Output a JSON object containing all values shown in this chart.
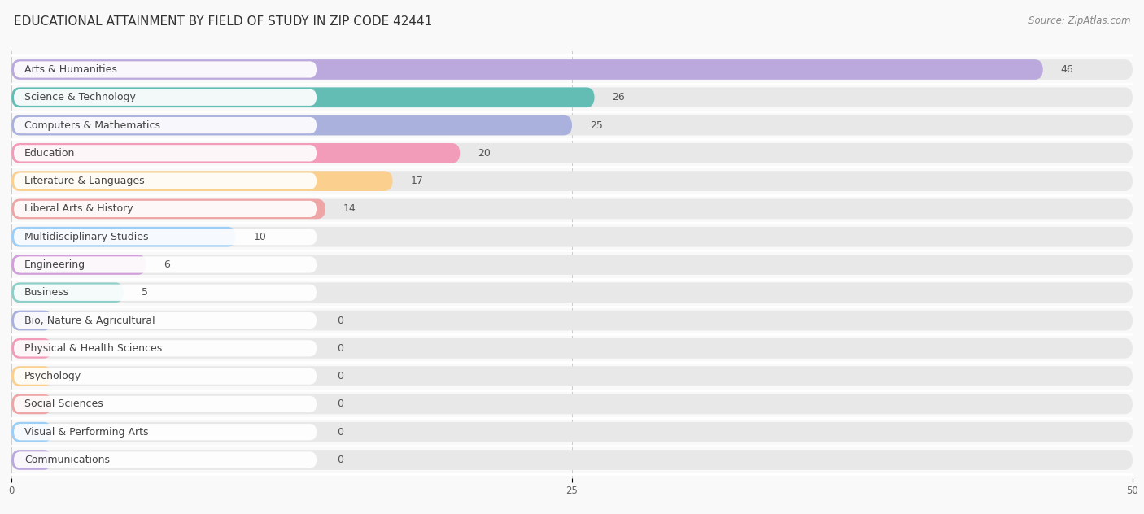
{
  "title": "EDUCATIONAL ATTAINMENT BY FIELD OF STUDY IN ZIP CODE 42441",
  "source": "Source: ZipAtlas.com",
  "categories": [
    "Arts & Humanities",
    "Science & Technology",
    "Computers & Mathematics",
    "Education",
    "Literature & Languages",
    "Liberal Arts & History",
    "Multidisciplinary Studies",
    "Engineering",
    "Business",
    "Bio, Nature & Agricultural",
    "Physical & Health Sciences",
    "Psychology",
    "Social Sciences",
    "Visual & Performing Arts",
    "Communications"
  ],
  "values": [
    46,
    26,
    25,
    20,
    17,
    14,
    10,
    6,
    5,
    0,
    0,
    0,
    0,
    0,
    0
  ],
  "colors": [
    "#b39ddb",
    "#4db6ac",
    "#9fa8da",
    "#f48fb1",
    "#ffcc80",
    "#ef9a9a",
    "#90caf9",
    "#ce93d8",
    "#80cbc4",
    "#9fa8da",
    "#f48fb1",
    "#ffcc80",
    "#ef9a9a",
    "#90caf9",
    "#b39ddb"
  ],
  "xlim": [
    0,
    50
  ],
  "xticks": [
    0,
    25,
    50
  ],
  "background_color": "#f9f9f9",
  "bar_background": "#ebebeb",
  "row_background": "#f0f0f0",
  "title_fontsize": 11,
  "label_fontsize": 9,
  "value_fontsize": 9,
  "source_fontsize": 8.5
}
